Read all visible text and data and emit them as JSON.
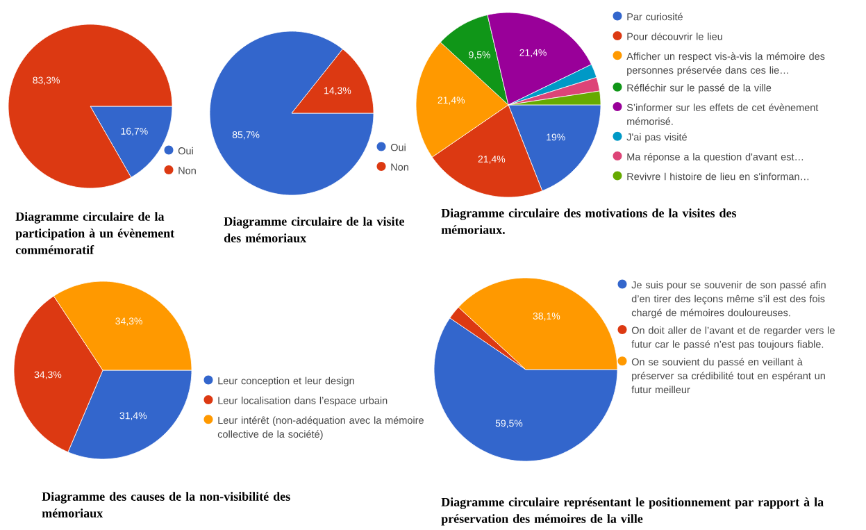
{
  "chart_data": [
    {
      "type": "pie",
      "title": "Diagramme circulaire de la participation à un évènement commémoratif",
      "categories": [
        "Oui",
        "Non"
      ],
      "values": [
        16.7,
        83.3
      ],
      "colors": [
        "#3366cc",
        "#dc3912"
      ],
      "value_labels": [
        "16,7%",
        "83,3%"
      ],
      "legend": "bottom right"
    },
    {
      "type": "pie",
      "title": "Diagramme circulaire de la visite des mémoriaux",
      "categories": [
        "Oui",
        "Non"
      ],
      "values": [
        85.7,
        14.3
      ],
      "colors": [
        "#3366cc",
        "#dc3912"
      ],
      "value_labels": [
        "85,7%",
        "14,3%"
      ],
      "legend": "bottom right"
    },
    {
      "type": "pie",
      "title": "Diagramme circulaire des motivations  de la visites des mémoriaux.",
      "categories": [
        "Par curiosité",
        "Pour découvrir le lieu",
        "Afficher un respect vis-à-vis la mémoire des personnes préservée dans ces lie…",
        "Réfléchir sur le passé de la ville",
        "S’informer sur les effets de cet évènement mémorisé.",
        "J'ai pas visité",
        "Ma réponse a la question d'avant est…",
        "Revivre l histoire de lieu en s'informan…"
      ],
      "values": [
        19,
        21.4,
        21.4,
        9.5,
        21.4,
        2.4,
        2.4,
        2.4
      ],
      "colors": [
        "#3366cc",
        "#dc3912",
        "#ff9900",
        "#109618",
        "#990099",
        "#0099c6",
        "#dd4477",
        "#66aa00"
      ],
      "value_labels": [
        "19%",
        "21,4%",
        "21,4%",
        "9,5%",
        "21,4%",
        null,
        null,
        null
      ],
      "legend": "right"
    },
    {
      "type": "pie",
      "title": "Diagramme des causes de la non-visibilité des mémoriaux",
      "categories": [
        "Leur conception et leur design",
        "Leur localisation dans l’espace urbain",
        "Leur intérêt (non-adéquation avec la mémoire collective de la société)"
      ],
      "values": [
        31.4,
        34.3,
        34.3
      ],
      "colors": [
        "#3366cc",
        "#dc3912",
        "#ff9900"
      ],
      "value_labels": [
        "31,4%",
        "34,3%",
        "34,3%"
      ],
      "legend": "bottom right"
    },
    {
      "type": "pie",
      "title": "Diagramme circulaire représentant le positionnement par rapport à la préservation des mémoires de la ville",
      "categories": [
        "Je suis pour se souvenir de son passé afin d’en tirer des leçons même s’il est des fois chargé de mémoires douloureuses.",
        "On doit aller de l’avant et de regarder vers le futur car le passé n’est pas toujours fiable.",
        "On se souvient du passé en veillant à préserver sa crédibilité tout en espérant un futur meilleur"
      ],
      "values": [
        59.5,
        2.4,
        38.1
      ],
      "colors": [
        "#3366cc",
        "#dc3912",
        "#ff9900"
      ],
      "value_labels": [
        "59,5%",
        null,
        "38,1%"
      ],
      "legend": "right"
    }
  ]
}
